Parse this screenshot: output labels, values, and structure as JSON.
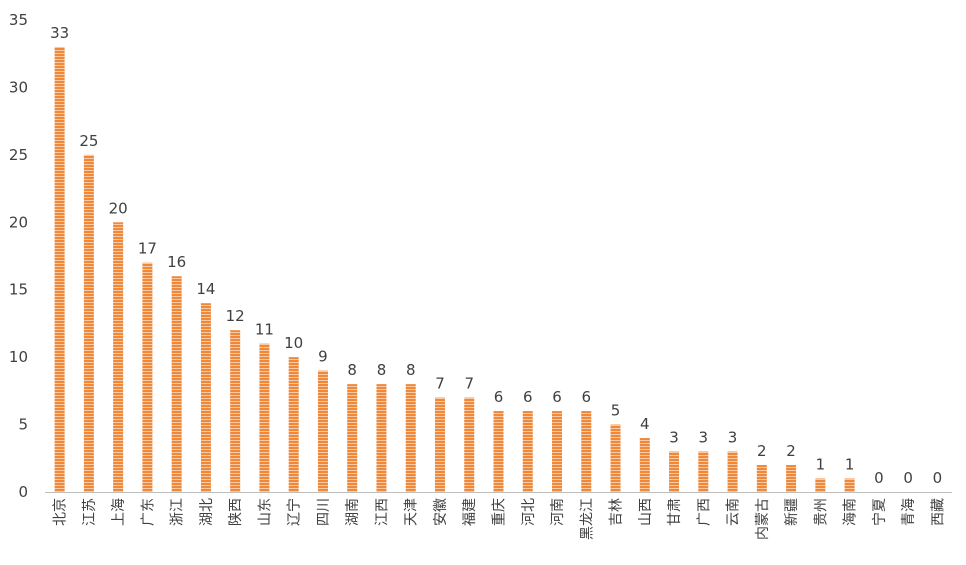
{
  "chart_data": {
    "type": "bar",
    "title": "",
    "xlabel": "",
    "ylabel": "",
    "categories": [
      "北京",
      "江苏",
      "上海",
      "广东",
      "浙江",
      "湖北",
      "陕西",
      "山东",
      "辽宁",
      "四川",
      "湖南",
      "江西",
      "天津",
      "安徽",
      "福建",
      "重庆",
      "河北",
      "河南",
      "黑龙江",
      "吉林",
      "山西",
      "甘肃",
      "广西",
      "云南",
      "内蒙古",
      "新疆",
      "贵州",
      "海南",
      "宁夏",
      "青海",
      "西藏"
    ],
    "values": [
      33,
      25,
      20,
      17,
      16,
      14,
      12,
      11,
      10,
      9,
      8,
      8,
      8,
      7,
      7,
      6,
      6,
      6,
      6,
      5,
      4,
      3,
      3,
      3,
      2,
      2,
      1,
      1,
      0,
      0,
      0
    ],
    "ylim": [
      0,
      35
    ],
    "yticks": [
      0,
      5,
      10,
      15,
      20,
      25,
      30,
      35
    ],
    "grid": false,
    "legend": "none",
    "data_labels": true,
    "bar_color": "#F0883A",
    "bar_stripe_color": "#FFFFFF",
    "axis_color": "#BFBFBF",
    "text_color": "#404040"
  }
}
